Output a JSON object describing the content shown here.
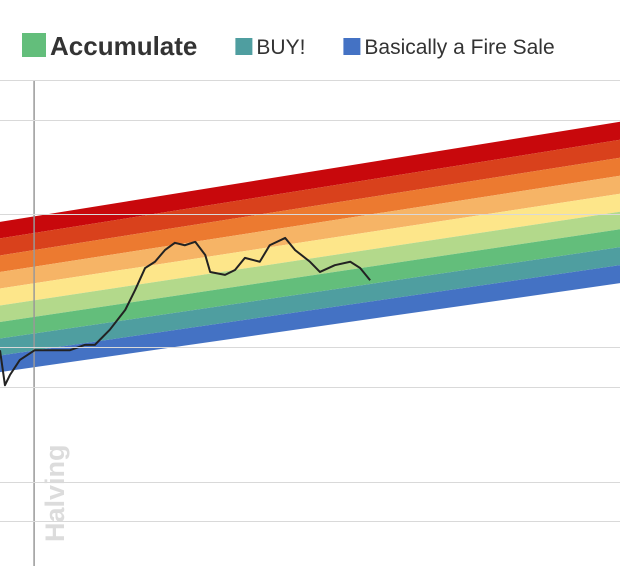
{
  "chart_data": [
    {
      "type": "area",
      "x": [
        0,
        100
      ],
      "xlim": [
        0,
        100
      ],
      "ylim": [
        0,
        100
      ],
      "base": [
        39.9,
        58.2
      ],
      "series": [
        {
          "color": "#c8080c",
          "values": [
            70.8,
            91.4
          ]
        },
        {
          "color": "#d9411c",
          "values": [
            67.4,
            87.7
          ]
        },
        {
          "color": "#ec7a30",
          "values": [
            63.9,
            84.0
          ]
        },
        {
          "color": "#f6b466",
          "values": [
            60.5,
            80.3
          ]
        },
        {
          "color": "#fde68a",
          "values": [
            57.1,
            76.6
          ]
        },
        {
          "color": "#b3d98b",
          "values": [
            53.6,
            72.9
          ]
        },
        {
          "name": "Accumulate",
          "color": "#63be7b",
          "values": [
            50.2,
            69.3
          ]
        },
        {
          "name": "BUY!",
          "color": "#4f9ea0",
          "values": [
            46.8,
            65.6
          ]
        },
        {
          "name": "Basically a Fire Sale",
          "color": "#4472c4",
          "values": [
            43.3,
            61.9
          ]
        }
      ]
    },
    {
      "type": "line",
      "color": "#222222",
      "xlim": [
        0,
        100
      ],
      "ylim": [
        0,
        100
      ],
      "x": [
        0,
        0.8,
        1.6,
        3.2,
        5.6,
        8.1,
        11.3,
        13.7,
        15.3,
        17.7,
        20.2,
        21.8,
        23.4,
        25,
        26.6,
        28.2,
        29.8,
        31.5,
        33.1,
        33.9,
        36.3,
        37.9,
        39.5,
        41.9,
        43.5,
        46,
        47.6,
        50,
        51.6,
        54,
        56.5,
        58.1,
        59.7
      ],
      "values": [
        44.4,
        37.2,
        39.3,
        42.4,
        44.4,
        44.4,
        44.4,
        45.5,
        45.5,
        48.6,
        52.7,
        56.8,
        61.3,
        62.6,
        65.0,
        66.5,
        66.0,
        66.7,
        64.0,
        60.5,
        59.9,
        60.9,
        63.4,
        62.6,
        66.0,
        67.5,
        65.0,
        62.6,
        60.5,
        61.9,
        62.6,
        61.3,
        58.8
      ],
      "annotations": [
        {
          "text": "Halving",
          "x": 5.5
        }
      ]
    }
  ]
}
